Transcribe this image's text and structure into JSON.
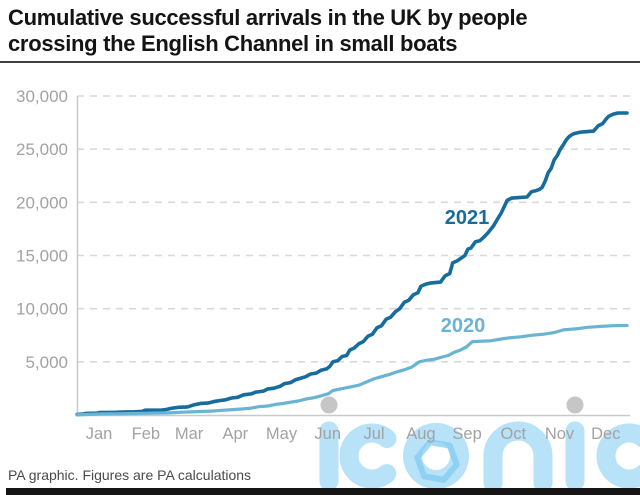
{
  "header": {
    "title_lines": [
      "Cumulative successful arrivals in the UK by people",
      "crossing the English Channel in small boats"
    ]
  },
  "footer": {
    "note": "PA graphic. Figures are PA calculations"
  },
  "watermark": {
    "text": "iconic"
  },
  "colors": {
    "series_2021": "#176c9e",
    "series_2020": "#6ab4d3",
    "grid": "#d9d9d9",
    "tick_label": "#a2a2a2",
    "watermark_blue": "#7ecbf0"
  },
  "chart_data": {
    "type": "line",
    "title": "Cumulative successful arrivals in the UK by people crossing the English Channel in small boats",
    "xlabel": "",
    "ylabel": "",
    "grid": "dashed horizontal gridlines",
    "legend_position": "inline labels on lines",
    "xlim_days": [
      0,
      365
    ],
    "ylim": [
      0,
      30000
    ],
    "y_ticks": [
      {
        "value": 5000,
        "label": "5,000"
      },
      {
        "value": 10000,
        "label": "10,000"
      },
      {
        "value": 15000,
        "label": "15,000"
      },
      {
        "value": 20000,
        "label": "20,000"
      },
      {
        "value": 25000,
        "label": "25,000"
      },
      {
        "value": 30000,
        "label": "30,000"
      }
    ],
    "x_ticks": [
      {
        "label": "Jan",
        "day": 14.5
      },
      {
        "label": "Feb",
        "day": 45.5
      },
      {
        "label": "Mar",
        "day": 74
      },
      {
        "label": "Apr",
        "day": 104.5
      },
      {
        "label": "May",
        "day": 135
      },
      {
        "label": "Jun",
        "day": 165.5
      },
      {
        "label": "Jul",
        "day": 196
      },
      {
        "label": "Aug",
        "day": 227
      },
      {
        "label": "Sep",
        "day": 257.5
      },
      {
        "label": "Oct",
        "day": 288
      },
      {
        "label": "Nov",
        "day": 318.5
      },
      {
        "label": "Dec",
        "day": 349
      }
    ],
    "series": [
      {
        "name": "2021",
        "color": "#176c9e",
        "final_value": 28400,
        "points": [
          [
            0,
            50
          ],
          [
            4,
            80
          ],
          [
            6,
            150
          ],
          [
            13,
            170
          ],
          [
            15,
            235
          ],
          [
            26,
            250
          ],
          [
            30,
            280
          ],
          [
            38,
            300
          ],
          [
            43,
            335
          ],
          [
            45,
            450
          ],
          [
            56,
            470
          ],
          [
            59,
            520
          ],
          [
            62,
            620
          ],
          [
            67,
            720
          ],
          [
            73,
            760
          ],
          [
            77,
            950
          ],
          [
            82,
            1090
          ],
          [
            87,
            1140
          ],
          [
            90,
            1250
          ],
          [
            94,
            1350
          ],
          [
            98,
            1430
          ],
          [
            102,
            1600
          ],
          [
            106,
            1660
          ],
          [
            110,
            1900
          ],
          [
            115,
            1980
          ],
          [
            118,
            2150
          ],
          [
            123,
            2250
          ],
          [
            126,
            2450
          ],
          [
            130,
            2520
          ],
          [
            134,
            2700
          ],
          [
            137,
            2950
          ],
          [
            141,
            3050
          ],
          [
            144,
            3300
          ],
          [
            147,
            3430
          ],
          [
            151,
            3600
          ],
          [
            154,
            3850
          ],
          [
            158,
            3950
          ],
          [
            161,
            4200
          ],
          [
            165,
            4350
          ],
          [
            167,
            4600
          ],
          [
            169,
            5000
          ],
          [
            172,
            5100
          ],
          [
            175,
            5500
          ],
          [
            178,
            5600
          ],
          [
            180,
            6100
          ],
          [
            183,
            6300
          ],
          [
            186,
            6700
          ],
          [
            189,
            6900
          ],
          [
            192,
            7400
          ],
          [
            195,
            7600
          ],
          [
            198,
            8200
          ],
          [
            201,
            8400
          ],
          [
            204,
            9000
          ],
          [
            207,
            9200
          ],
          [
            210,
            9700
          ],
          [
            213,
            10000
          ],
          [
            216,
            10600
          ],
          [
            219,
            10800
          ],
          [
            222,
            11300
          ],
          [
            225,
            11500
          ],
          [
            227,
            12100
          ],
          [
            230,
            12300
          ],
          [
            233,
            12400
          ],
          [
            240,
            12500
          ],
          [
            243,
            13100
          ],
          [
            246,
            13300
          ],
          [
            248,
            14300
          ],
          [
            251,
            14500
          ],
          [
            254,
            14800
          ],
          [
            256,
            15000
          ],
          [
            258,
            15600
          ],
          [
            260,
            15700
          ],
          [
            263,
            16300
          ],
          [
            266,
            16400
          ],
          [
            269,
            16800
          ],
          [
            271,
            17100
          ],
          [
            275,
            17800
          ],
          [
            277,
            18300
          ],
          [
            280,
            19000
          ],
          [
            282,
            19600
          ],
          [
            284,
            20200
          ],
          [
            287,
            20400
          ],
          [
            297,
            20500
          ],
          [
            300,
            21000
          ],
          [
            303,
            21100
          ],
          [
            305,
            21200
          ],
          [
            307,
            21400
          ],
          [
            309,
            22000
          ],
          [
            311,
            22800
          ],
          [
            313,
            23200
          ],
          [
            315,
            24000
          ],
          [
            317,
            24400
          ],
          [
            319,
            25000
          ],
          [
            321,
            25400
          ],
          [
            323,
            25900
          ],
          [
            325,
            26200
          ],
          [
            327,
            26400
          ],
          [
            329,
            26500
          ],
          [
            332,
            26600
          ],
          [
            341,
            26700
          ],
          [
            344,
            27200
          ],
          [
            347,
            27400
          ],
          [
            349,
            27800
          ],
          [
            351,
            28100
          ],
          [
            354,
            28300
          ],
          [
            357,
            28400
          ],
          [
            363,
            28400
          ]
        ]
      },
      {
        "name": "2020",
        "color": "#6ab4d3",
        "final_value": 8420,
        "points": [
          [
            0,
            10
          ],
          [
            8,
            60
          ],
          [
            15,
            90
          ],
          [
            31,
            120
          ],
          [
            45,
            160
          ],
          [
            60,
            200
          ],
          [
            70,
            260
          ],
          [
            80,
            320
          ],
          [
            90,
            380
          ],
          [
            97,
            450
          ],
          [
            104,
            520
          ],
          [
            110,
            580
          ],
          [
            115,
            650
          ],
          [
            120,
            780
          ],
          [
            126,
            850
          ],
          [
            131,
            1000
          ],
          [
            136,
            1080
          ],
          [
            141,
            1200
          ],
          [
            146,
            1320
          ],
          [
            151,
            1500
          ],
          [
            156,
            1620
          ],
          [
            161,
            1800
          ],
          [
            166,
            2000
          ],
          [
            169,
            2300
          ],
          [
            174,
            2450
          ],
          [
            181,
            2650
          ],
          [
            186,
            2800
          ],
          [
            191,
            3100
          ],
          [
            196,
            3400
          ],
          [
            201,
            3600
          ],
          [
            206,
            3800
          ],
          [
            211,
            4050
          ],
          [
            216,
            4250
          ],
          [
            221,
            4500
          ],
          [
            226,
            5000
          ],
          [
            231,
            5150
          ],
          [
            236,
            5250
          ],
          [
            241,
            5450
          ],
          [
            245,
            5600
          ],
          [
            249,
            5900
          ],
          [
            253,
            6100
          ],
          [
            257,
            6400
          ],
          [
            261,
            6900
          ],
          [
            273,
            6980
          ],
          [
            280,
            7150
          ],
          [
            285,
            7250
          ],
          [
            293,
            7350
          ],
          [
            300,
            7500
          ],
          [
            308,
            7600
          ],
          [
            315,
            7750
          ],
          [
            321,
            8000
          ],
          [
            329,
            8100
          ],
          [
            337,
            8250
          ],
          [
            346,
            8330
          ],
          [
            354,
            8400
          ],
          [
            363,
            8420
          ]
        ]
      }
    ]
  }
}
